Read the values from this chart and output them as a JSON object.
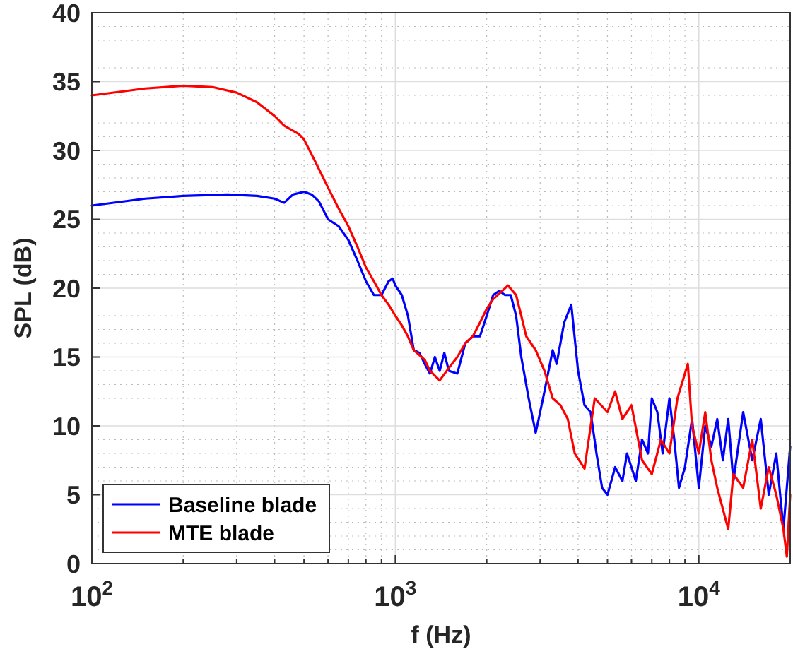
{
  "chart_data": {
    "type": "line",
    "xlabel": "f (Hz)",
    "ylabel": "SPL (dB)",
    "log": "x",
    "grid": true,
    "legend": "bottom left",
    "line_style": "solid",
    "marker": "none",
    "xlim": [
      100,
      20000
    ],
    "ylim": [
      0,
      40
    ],
    "xticks": [
      {
        "value": 100,
        "label": "10$^{2}$"
      },
      {
        "value": 1000,
        "label": "10$^{3}$"
      },
      {
        "value": 10000,
        "label": "10$^{4}$"
      }
    ],
    "yticks": [
      0,
      5,
      10,
      15,
      20,
      25,
      30,
      35,
      40
    ],
    "series": [
      {
        "name": "Baseline blade",
        "color": "#0000ff",
        "x": [
          100,
          150,
          200,
          280,
          350,
          400,
          430,
          460,
          500,
          530,
          560,
          600,
          650,
          700,
          750,
          800,
          850,
          900,
          950,
          980,
          1000,
          1050,
          1100,
          1150,
          1200,
          1250,
          1300,
          1350,
          1400,
          1450,
          1500,
          1600,
          1700,
          1800,
          1900,
          2000,
          2100,
          2200,
          2300,
          2400,
          2500,
          2600,
          2750,
          2900,
          3000,
          3100,
          3300,
          3400,
          3600,
          3800,
          4000,
          4200,
          4400,
          4600,
          4800,
          5000,
          5300,
          5600,
          5800,
          6200,
          6500,
          6800,
          7000,
          7300,
          7600,
          8000,
          8300,
          8600,
          9000,
          9500,
          10000,
          10500,
          11000,
          11500,
          12000,
          12500,
          13000,
          14000,
          15000,
          16000,
          17000,
          18000,
          19000,
          20000
        ],
        "values": [
          26,
          26.5,
          26.7,
          26.8,
          26.7,
          26.5,
          26.2,
          26.8,
          27,
          26.8,
          26.3,
          25,
          24.5,
          23.5,
          22,
          20.5,
          19.5,
          19.5,
          20.5,
          20.7,
          20.2,
          19.5,
          18,
          15.5,
          15.3,
          14.5,
          13.8,
          15,
          14,
          15.3,
          14,
          13.8,
          16,
          16.5,
          16.5,
          18,
          19.5,
          19.8,
          19.5,
          19.5,
          18,
          15,
          12,
          9.5,
          11,
          12.5,
          15.5,
          14.5,
          17.5,
          18.8,
          14,
          11.5,
          11,
          8,
          5.5,
          5,
          7,
          6,
          8,
          6,
          9,
          8,
          12,
          11,
          8,
          12,
          9,
          5.5,
          7,
          10.5,
          5.5,
          10,
          8.5,
          10.5,
          7.5,
          10.5,
          6,
          11,
          7.5,
          10.5,
          5,
          8,
          2.5,
          8.5
        ]
      },
      {
        "name": "MTE blade",
        "color": "#ff0000",
        "x": [
          100,
          150,
          200,
          250,
          300,
          350,
          400,
          430,
          480,
          500,
          550,
          600,
          650,
          700,
          750,
          800,
          850,
          900,
          950,
          1000,
          1050,
          1100,
          1150,
          1250,
          1300,
          1400,
          1500,
          1600,
          1700,
          1800,
          1900,
          2000,
          2100,
          2250,
          2350,
          2500,
          2600,
          2700,
          2900,
          3100,
          3300,
          3500,
          3700,
          3900,
          4200,
          4540,
          5000,
          5300,
          5600,
          6000,
          6500,
          7000,
          7500,
          8000,
          8500,
          9200,
          9500,
          10000,
          10500,
          11000,
          11500,
          12500,
          13000,
          14000,
          15000,
          16000,
          17000,
          18000,
          19000,
          19500,
          20000
        ],
        "values": [
          34,
          34.5,
          34.7,
          34.6,
          34.2,
          33.5,
          32.5,
          31.8,
          31.2,
          30.8,
          29,
          27.3,
          25.8,
          24.5,
          23,
          21.5,
          20.5,
          19.5,
          18.8,
          18,
          17.3,
          16.5,
          15.5,
          14.8,
          14,
          13.3,
          14.2,
          15,
          16,
          16.5,
          17.5,
          18.5,
          19.2,
          19.8,
          20.2,
          19.5,
          18,
          16.5,
          15.5,
          14,
          12,
          11.5,
          10.5,
          8,
          6.9,
          12,
          11,
          12.5,
          10.5,
          11.5,
          7.5,
          6.5,
          9,
          8,
          12,
          14.5,
          10,
          8,
          11,
          7.5,
          5.5,
          2.5,
          6.5,
          5.5,
          9,
          4,
          7,
          5,
          2.5,
          0.5,
          5
        ]
      }
    ]
  }
}
